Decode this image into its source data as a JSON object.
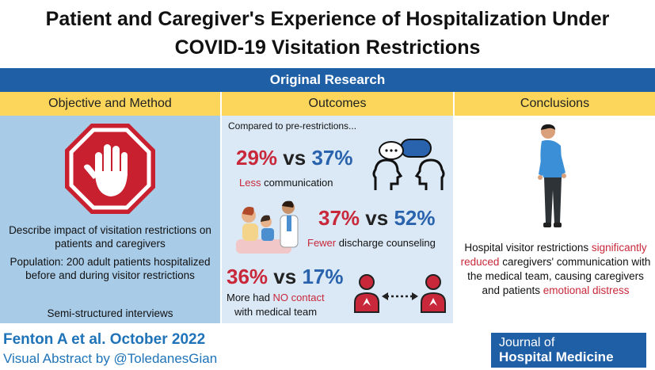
{
  "title": {
    "line1": "Patient and Caregiver's Experience of Hospitalization Under",
    "line2": "COVID-19 Visitation Restrictions"
  },
  "banner": "Original Research",
  "columns": {
    "objective": "Objective and Method",
    "outcomes": "Outcomes",
    "conclusions": "Conclusions"
  },
  "objective": {
    "describe": "Describe impact of visitation restrictions on patients and caregivers",
    "population": "Population: 200 adult patients hospitalized before and during visitor restrictions",
    "method": "Semi-structured interviews"
  },
  "outcomes": {
    "compared": "Compared to pre-restrictions...",
    "row1": {
      "a": "29%",
      "vs": "vs",
      "b": "37%",
      "lead": "Less",
      "rest": " communication"
    },
    "row2": {
      "a": "37%",
      "vs": "vs",
      "b": "52%",
      "lead": "Fewer",
      "rest": " discharge counseling"
    },
    "row3": {
      "a": "36%",
      "vs": "vs",
      "b": "17%",
      "pre": "More had ",
      "lead": "NO contact",
      "line2": "with medical team"
    }
  },
  "conclusions": {
    "p1": "Hospital visitor restrictions ",
    "h1": "significantly reduced",
    "p2": " caregivers' communication with the medical team, causing caregivers and patients ",
    "h2": "emotional distress"
  },
  "footer": {
    "author": "Fenton A et al. October 2022",
    "credit": "Visual Abstract by @ToledanesGian"
  },
  "journal": {
    "line1": "Journal of",
    "line2": "Hospital Medicine"
  },
  "colors": {
    "red": "#c8283a",
    "blue": "#2a63ad",
    "banner": "#1f5fa6",
    "header": "#fbd65a"
  },
  "icons": [
    "stop-hand-icon",
    "talking-heads-icon",
    "doctor-patient-icon",
    "disconnected-people-icon",
    "sad-person-icon"
  ]
}
